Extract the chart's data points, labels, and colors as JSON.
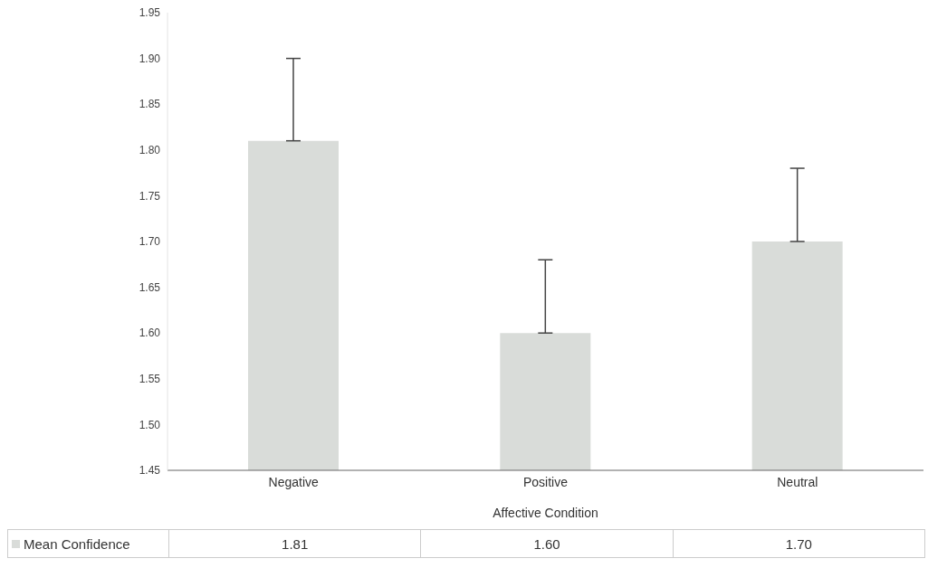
{
  "chart_data": {
    "type": "bar",
    "xlabel": "Affective Condition",
    "categories": [
      "Negative",
      "Positive",
      "Neutral"
    ],
    "series": [
      {
        "name": "Mean Confidence",
        "color": "#d9dcd9",
        "values": [
          1.81,
          1.6,
          1.7
        ],
        "errors": [
          [
            1.81,
            1.9
          ],
          [
            1.6,
            1.68
          ],
          [
            1.7,
            1.78
          ]
        ],
        "value_labels": [
          "1.81",
          "1.60",
          "1.70"
        ]
      }
    ],
    "ylim": [
      1.45,
      1.95
    ],
    "yticks": [
      {
        "value": 1.45,
        "label": "1.45"
      },
      {
        "value": 1.5,
        "label": "1.50"
      },
      {
        "value": 1.55,
        "label": "1.55"
      },
      {
        "value": 1.6,
        "label": "1.60"
      },
      {
        "value": 1.65,
        "label": "1.65"
      },
      {
        "value": 1.7,
        "label": "1.70"
      },
      {
        "value": 1.75,
        "label": "1.75"
      },
      {
        "value": 1.8,
        "label": "1.80"
      },
      {
        "value": 1.85,
        "label": "1.85"
      },
      {
        "value": 1.9,
        "label": "1.90"
      },
      {
        "value": 1.95,
        "label": "1.95"
      }
    ],
    "legend": "bottom left"
  }
}
